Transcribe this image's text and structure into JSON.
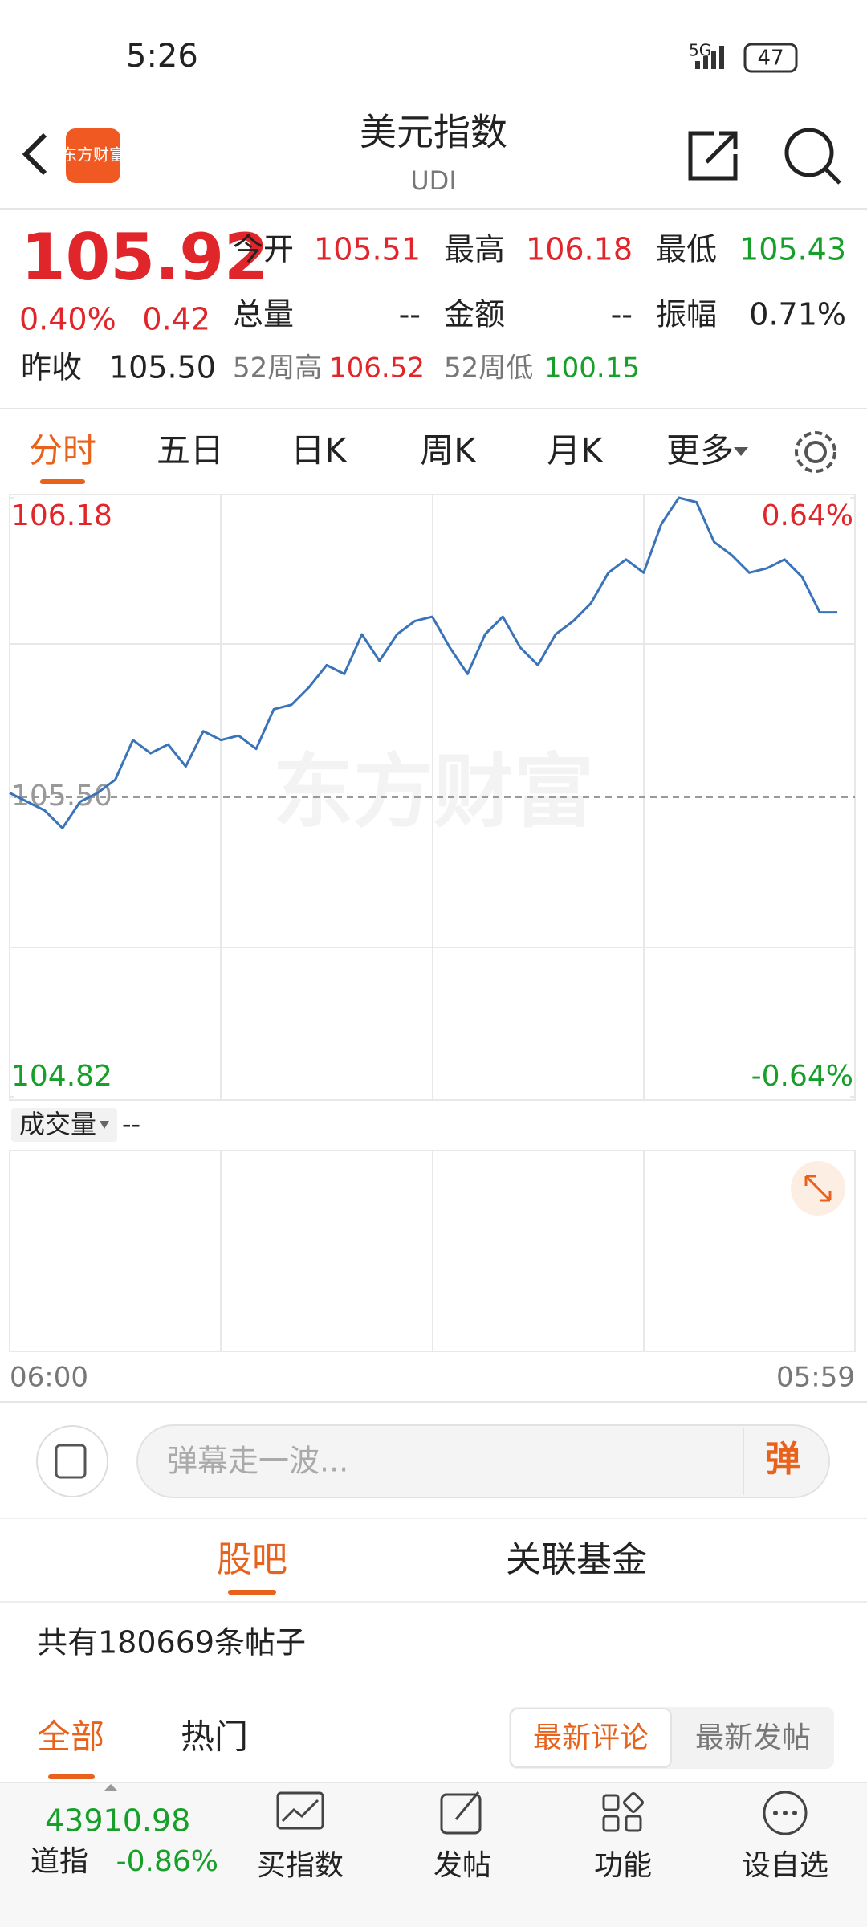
{
  "status_bar": {
    "time": "5:26",
    "network": "5G",
    "battery": "47"
  },
  "header": {
    "logo": "东方财富",
    "title": "美元指数",
    "subtitle": "UDI"
  },
  "quote": {
    "price": "105.92",
    "change_pct": "0.40%",
    "change": "0.42",
    "stats": [
      [
        "今开",
        "105.51"
      ],
      [
        "最高",
        "106.18"
      ],
      [
        "最低",
        "105.43"
      ],
      [
        "总量",
        "--"
      ],
      [
        "金额",
        "--"
      ],
      [
        "振幅",
        "0.71%"
      ]
    ],
    "prev_close": [
      "昨收",
      "105.50"
    ],
    "high_52w": [
      "52周高",
      "106.52"
    ],
    "low_52w": [
      "52周低",
      "100.15"
    ]
  },
  "tabs": [
    "分时",
    "五日",
    "日K",
    "周K",
    "月K",
    "更多"
  ],
  "chart_data": {
    "type": "line",
    "watermark": "东方财富",
    "categories": [
      "06:00",
      null,
      null,
      null,
      null,
      null,
      null,
      null,
      null,
      null,
      null,
      null,
      null,
      null,
      null,
      null,
      null,
      null,
      null,
      null,
      null,
      null,
      null,
      null,
      null,
      null,
      null,
      null,
      null,
      null,
      null,
      null,
      null,
      null,
      null,
      null,
      null,
      null,
      null,
      null,
      null,
      null,
      null,
      null,
      null,
      null,
      null,
      null,
      "05:59"
    ],
    "series": [
      {
        "name": "美元指数",
        "color": "#3a73b8",
        "values": [
          105.51,
          105.49,
          105.47,
          105.43,
          105.49,
          105.51,
          105.54,
          105.63,
          105.6,
          105.62,
          105.57,
          105.65,
          105.63,
          105.64,
          105.61,
          105.7,
          105.71,
          105.75,
          105.8,
          105.78,
          105.87,
          105.81,
          105.87,
          105.9,
          105.91,
          105.84,
          105.78,
          105.87,
          105.91,
          105.84,
          105.8,
          105.87,
          105.9,
          105.94,
          106.01,
          106.04,
          106.01,
          106.12,
          106.18,
          106.17,
          106.08,
          106.05,
          106.01,
          106.02,
          106.04,
          106.0,
          105.92,
          105.92,
          null
        ]
      }
    ],
    "ylim": [
      104.82,
      106.18
    ],
    "yticks": [
      106.18,
      {
        "value": 105.5,
        "label": "105.50"
      },
      104.82
    ],
    "y2lim": [
      -0.64,
      0.64
    ],
    "y2ticks": [
      {
        "value": 0.64,
        "label": "0.64%"
      },
      {
        "value": -0.64,
        "label": "-0.64%"
      }
    ],
    "baseline": 105.5
  },
  "volume": {
    "label": "成交量",
    "value": "--"
  },
  "comment_bar": {
    "placeholder": "弹幕走一波...",
    "button": "弹"
  },
  "forum": {
    "tabs": [
      "股吧",
      "关联基金"
    ],
    "count_text": "共有180669条帖子",
    "filters": [
      "全部",
      "热门"
    ],
    "sorts": [
      "最新评论",
      "最新发帖"
    ]
  },
  "bottom_bar": {
    "index_name": "道指",
    "index_value": "43910.98",
    "index_change": "-0.86%",
    "items": [
      "买指数",
      "发帖",
      "功能",
      "设自选"
    ]
  }
}
